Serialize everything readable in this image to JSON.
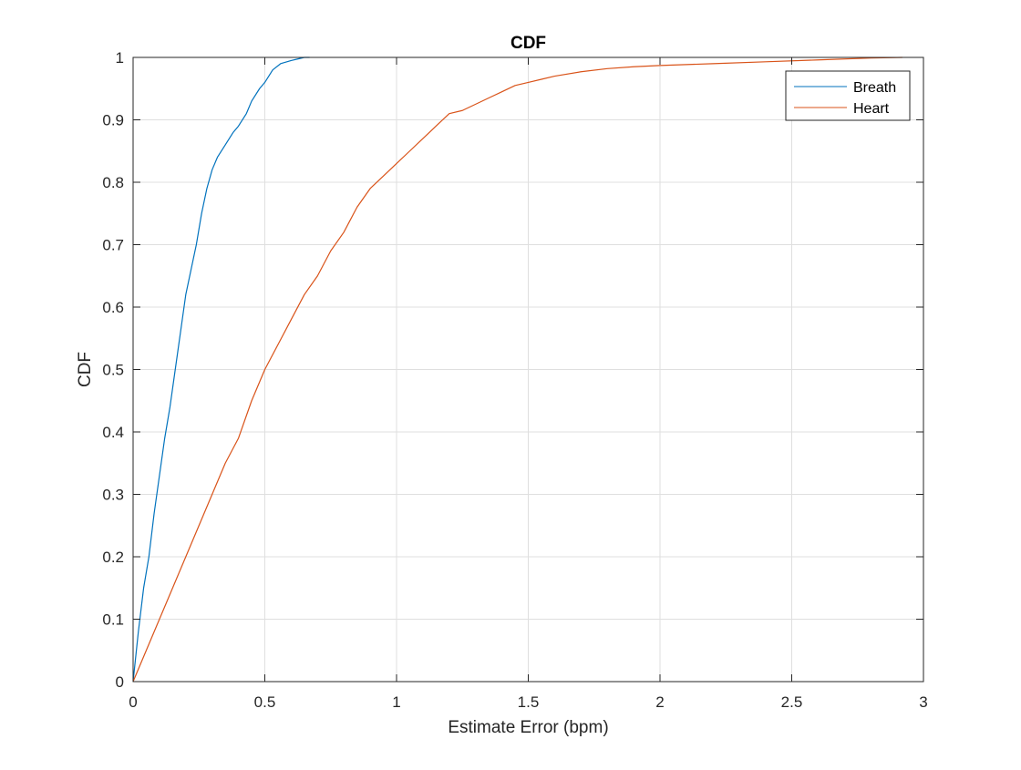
{
  "chart_data": {
    "type": "line",
    "title": "CDF",
    "xlabel": "Estimate Error (bpm)",
    "ylabel": "CDF",
    "xlim": [
      0,
      3
    ],
    "ylim": [
      0,
      1
    ],
    "xticks": [
      0,
      0.5,
      1,
      1.5,
      2,
      2.5,
      3
    ],
    "xtick_labels": [
      "0",
      "0.5",
      "1",
      "1.5",
      "2",
      "2.5",
      "3"
    ],
    "yticks": [
      0,
      0.1,
      0.2,
      0.3,
      0.4,
      0.5,
      0.6,
      0.7,
      0.8,
      0.9,
      1
    ],
    "ytick_labels": [
      "0",
      "0.1",
      "0.2",
      "0.3",
      "0.4",
      "0.5",
      "0.6",
      "0.7",
      "0.8",
      "0.9",
      "1"
    ],
    "grid": true,
    "legend_position": "top-right",
    "series": [
      {
        "name": "Breath",
        "color": "#0072BD",
        "x": [
          0,
          0.02,
          0.04,
          0.06,
          0.08,
          0.1,
          0.12,
          0.14,
          0.16,
          0.18,
          0.2,
          0.22,
          0.24,
          0.26,
          0.28,
          0.3,
          0.32,
          0.35,
          0.38,
          0.4,
          0.43,
          0.45,
          0.48,
          0.5,
          0.53,
          0.56,
          0.6,
          0.63,
          0.65,
          0.67
        ],
        "y": [
          0,
          0.08,
          0.15,
          0.2,
          0.27,
          0.33,
          0.39,
          0.44,
          0.5,
          0.56,
          0.62,
          0.66,
          0.7,
          0.75,
          0.79,
          0.82,
          0.84,
          0.86,
          0.88,
          0.89,
          0.91,
          0.93,
          0.95,
          0.96,
          0.98,
          0.99,
          0.995,
          0.998,
          1.0,
          1.0
        ]
      },
      {
        "name": "Heart",
        "color": "#D95319",
        "x": [
          0,
          0.05,
          0.1,
          0.15,
          0.2,
          0.25,
          0.3,
          0.35,
          0.4,
          0.45,
          0.5,
          0.55,
          0.6,
          0.65,
          0.7,
          0.75,
          0.8,
          0.85,
          0.9,
          0.95,
          1.0,
          1.05,
          1.1,
          1.15,
          1.2,
          1.25,
          1.3,
          1.35,
          1.4,
          1.45,
          1.5,
          1.55,
          1.6,
          1.7,
          1.8,
          1.9,
          2.0,
          2.2,
          2.4,
          2.6,
          2.8,
          2.92
        ],
        "y": [
          0,
          0.05,
          0.1,
          0.15,
          0.2,
          0.25,
          0.3,
          0.35,
          0.39,
          0.45,
          0.5,
          0.54,
          0.58,
          0.62,
          0.65,
          0.69,
          0.72,
          0.76,
          0.79,
          0.81,
          0.83,
          0.85,
          0.87,
          0.89,
          0.91,
          0.915,
          0.925,
          0.935,
          0.945,
          0.955,
          0.96,
          0.965,
          0.97,
          0.977,
          0.982,
          0.985,
          0.987,
          0.99,
          0.993,
          0.996,
          0.999,
          1.0
        ]
      }
    ]
  }
}
